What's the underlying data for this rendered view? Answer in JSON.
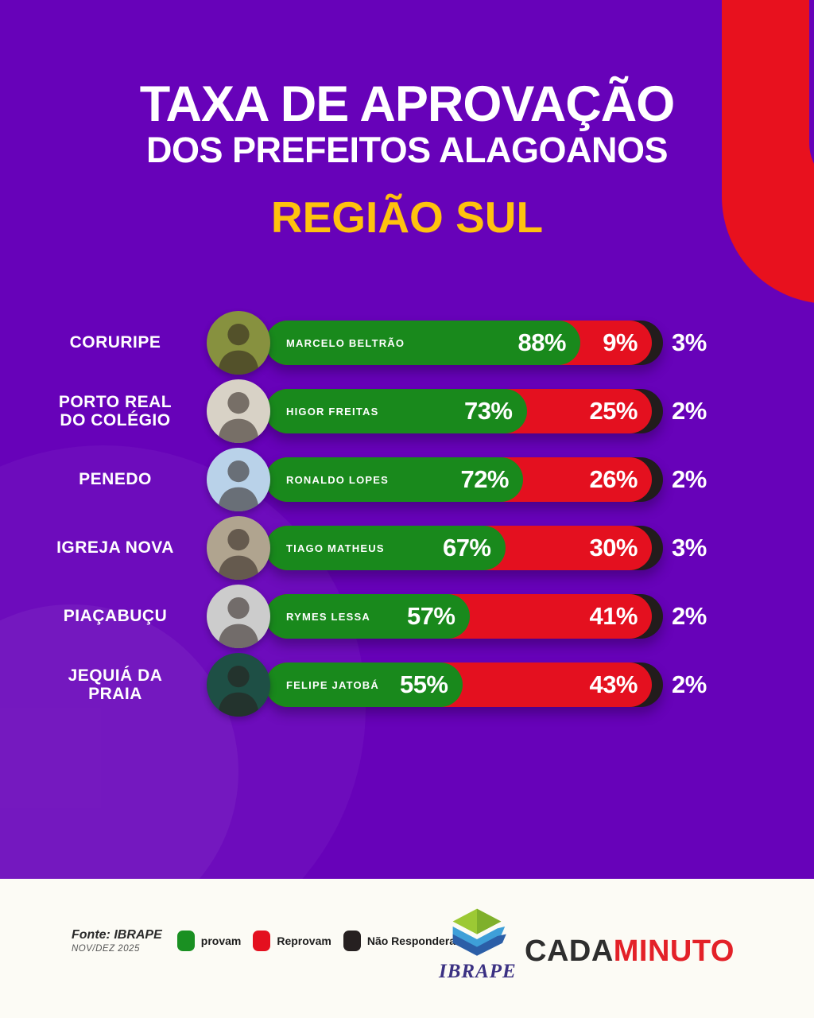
{
  "header": {
    "title_line1": "TAXA DE APROVAÇÃO",
    "title_line2": "DOS PREFEITOS ALAGOANOS",
    "subtitle": "REGIÃO SUL"
  },
  "rows": [
    {
      "city": "CORURIPE",
      "mayor": "MARCELO BELTRÃO",
      "approve": "88%",
      "reprove": "9%",
      "no_answer": "3%",
      "avatar_bg": "#87913f"
    },
    {
      "city": "PORTO REAL DO COLÉGIO",
      "mayor": "HIGOR FREITAS",
      "approve": "73%",
      "reprove": "25%",
      "no_answer": "2%",
      "avatar_bg": "#d8d2c6"
    },
    {
      "city": "PENEDO",
      "mayor": "RONALDO LOPES",
      "approve": "72%",
      "reprove": "26%",
      "no_answer": "2%",
      "avatar_bg": "#b9d2e9"
    },
    {
      "city": "IGREJA NOVA",
      "mayor": "TIAGO MATHEUS",
      "approve": "67%",
      "reprove": "30%",
      "no_answer": "3%",
      "avatar_bg": "#b0a48f"
    },
    {
      "city": "PIAÇABUÇU",
      "mayor": "RYMES LESSA",
      "approve": "57%",
      "reprove": "41%",
      "no_answer": "2%",
      "avatar_bg": "#cccccc"
    },
    {
      "city": "JEQUIÁ DA PRAIA",
      "mayor": "FELIPE JATOBÁ",
      "approve": "55%",
      "reprove": "43%",
      "no_answer": "2%",
      "avatar_bg": "#1e4f45"
    }
  ],
  "footer": {
    "source_line1": "Fonte: IBRAPE",
    "source_line2": "NOV/DEZ 2025",
    "legend": [
      {
        "label": "provam",
        "color": "#1A9022"
      },
      {
        "label": "Reprovam",
        "color": "#E4101F"
      },
      {
        "label": "Não Responderam",
        "color": "#262020"
      }
    ],
    "ibrape_logo_text": "IBRAPE",
    "brand_part1": "CADA",
    "brand_part2": "MINUTO"
  },
  "colors": {
    "background": "#6702B9",
    "accent_red": "#E4101F",
    "approve_green": "#19891C",
    "no_answer_black": "#221C1C",
    "subtitle_yellow": "#FFC20E",
    "footer_bg": "#FCFBF5"
  },
  "chart_data": {
    "type": "bar",
    "orientation": "horizontal",
    "stacked": true,
    "title": "TAXA DE APROVAÇÃO DOS PREFEITOS ALAGOANOS",
    "subtitle": "REGIÃO SUL",
    "categories": [
      "Coruripe",
      "Porto Real do Colégio",
      "Penedo",
      "Igreja Nova",
      "Piaçabuçu",
      "Jequiá da Praia"
    ],
    "category_mayors": [
      "Marcelo Beltrão",
      "Higor Freitas",
      "Ronaldo Lopes",
      "Tiago Matheus",
      "Rymes Lessa",
      "Felipe Jatobá"
    ],
    "series": [
      {
        "name": "Aprovam",
        "color": "#19891C",
        "values": [
          88,
          73,
          72,
          67,
          57,
          55
        ]
      },
      {
        "name": "Reprovam",
        "color": "#E4101F",
        "values": [
          9,
          25,
          26,
          30,
          41,
          43
        ]
      },
      {
        "name": "Não responderam",
        "color": "#221C1C",
        "values": [
          3,
          2,
          2,
          3,
          2,
          2
        ]
      }
    ],
    "value_format": "percent",
    "xlim": [
      0,
      100
    ],
    "legend_position": "bottom",
    "source": "Fonte: IBRAPE NOV/DEZ 2025"
  }
}
